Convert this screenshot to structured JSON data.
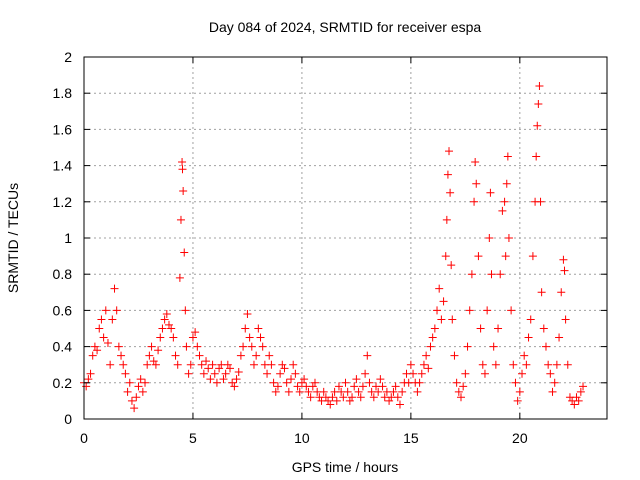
{
  "chart_data": {
    "type": "scatter",
    "title": "Day 084 of 2024, SRMTID for receiver espa",
    "xlabel": "GPS time / hours",
    "ylabel": "SRMTID / TECUs",
    "xlim": [
      0,
      24
    ],
    "ylim": [
      0,
      2
    ],
    "xticks": [
      0,
      5,
      10,
      15,
      20
    ],
    "xtick_labels": [
      "0",
      "5",
      "10",
      "15",
      "20"
    ],
    "yticks": [
      0,
      0.2,
      0.4,
      0.6,
      0.8,
      1,
      1.2,
      1.4,
      1.6,
      1.8,
      2
    ],
    "ytick_labels": [
      "0",
      "0.2",
      "0.4",
      "0.6",
      "0.8",
      "1",
      "1.2",
      "1.4",
      "1.6",
      "1.8",
      "2"
    ],
    "grid": true,
    "marker": "+",
    "series": [
      {
        "name": "SRMTID",
        "color": "#ff0000",
        "points": [
          [
            0.0,
            0.2
          ],
          [
            0.1,
            0.18
          ],
          [
            0.2,
            0.22
          ],
          [
            0.3,
            0.25
          ],
          [
            0.4,
            0.35
          ],
          [
            0.5,
            0.4
          ],
          [
            0.6,
            0.38
          ],
          [
            0.7,
            0.5
          ],
          [
            0.8,
            0.55
          ],
          [
            0.9,
            0.45
          ],
          [
            1.0,
            0.6
          ],
          [
            1.1,
            0.42
          ],
          [
            1.2,
            0.3
          ],
          [
            1.3,
            0.55
          ],
          [
            1.4,
            0.72
          ],
          [
            1.5,
            0.6
          ],
          [
            1.6,
            0.4
          ],
          [
            1.7,
            0.35
          ],
          [
            1.8,
            0.3
          ],
          [
            1.9,
            0.25
          ],
          [
            2.0,
            0.15
          ],
          [
            2.1,
            0.2
          ],
          [
            2.2,
            0.1
          ],
          [
            2.3,
            0.06
          ],
          [
            2.4,
            0.12
          ],
          [
            2.5,
            0.18
          ],
          [
            2.6,
            0.22
          ],
          [
            2.7,
            0.15
          ],
          [
            2.8,
            0.2
          ],
          [
            2.9,
            0.3
          ],
          [
            3.0,
            0.35
          ],
          [
            3.1,
            0.4
          ],
          [
            3.2,
            0.32
          ],
          [
            3.3,
            0.3
          ],
          [
            3.4,
            0.38
          ],
          [
            3.5,
            0.45
          ],
          [
            3.6,
            0.5
          ],
          [
            3.7,
            0.55
          ],
          [
            3.8,
            0.58
          ],
          [
            3.9,
            0.52
          ],
          [
            4.0,
            0.5
          ],
          [
            4.1,
            0.45
          ],
          [
            4.2,
            0.35
          ],
          [
            4.3,
            0.3
          ],
          [
            4.4,
            0.78
          ],
          [
            4.45,
            1.1
          ],
          [
            4.5,
            1.42
          ],
          [
            4.52,
            1.38
          ],
          [
            4.55,
            1.26
          ],
          [
            4.6,
            0.92
          ],
          [
            4.65,
            0.6
          ],
          [
            4.7,
            0.4
          ],
          [
            4.8,
            0.25
          ],
          [
            4.9,
            0.3
          ],
          [
            5.0,
            0.45
          ],
          [
            5.1,
            0.48
          ],
          [
            5.2,
            0.4
          ],
          [
            5.3,
            0.35
          ],
          [
            5.4,
            0.3
          ],
          [
            5.5,
            0.25
          ],
          [
            5.6,
            0.32
          ],
          [
            5.7,
            0.28
          ],
          [
            5.8,
            0.22
          ],
          [
            5.9,
            0.3
          ],
          [
            6.0,
            0.25
          ],
          [
            6.1,
            0.2
          ],
          [
            6.2,
            0.28
          ],
          [
            6.3,
            0.3
          ],
          [
            6.4,
            0.22
          ],
          [
            6.5,
            0.25
          ],
          [
            6.6,
            0.3
          ],
          [
            6.7,
            0.28
          ],
          [
            6.8,
            0.2
          ],
          [
            6.9,
            0.18
          ],
          [
            7.0,
            0.22
          ],
          [
            7.1,
            0.26
          ],
          [
            7.2,
            0.35
          ],
          [
            7.3,
            0.4
          ],
          [
            7.4,
            0.5
          ],
          [
            7.5,
            0.58
          ],
          [
            7.6,
            0.45
          ],
          [
            7.7,
            0.4
          ],
          [
            7.8,
            0.3
          ],
          [
            7.9,
            0.35
          ],
          [
            8.0,
            0.5
          ],
          [
            8.1,
            0.45
          ],
          [
            8.2,
            0.4
          ],
          [
            8.3,
            0.3
          ],
          [
            8.4,
            0.25
          ],
          [
            8.5,
            0.35
          ],
          [
            8.6,
            0.3
          ],
          [
            8.7,
            0.2
          ],
          [
            8.8,
            0.15
          ],
          [
            8.9,
            0.18
          ],
          [
            9.0,
            0.25
          ],
          [
            9.1,
            0.3
          ],
          [
            9.2,
            0.28
          ],
          [
            9.3,
            0.2
          ],
          [
            9.4,
            0.15
          ],
          [
            9.5,
            0.22
          ],
          [
            9.6,
            0.3
          ],
          [
            9.7,
            0.25
          ],
          [
            9.8,
            0.18
          ],
          [
            9.9,
            0.15
          ],
          [
            10.0,
            0.2
          ],
          [
            10.1,
            0.22
          ],
          [
            10.2,
            0.18
          ],
          [
            10.3,
            0.15
          ],
          [
            10.4,
            0.12
          ],
          [
            10.5,
            0.18
          ],
          [
            10.6,
            0.2
          ],
          [
            10.7,
            0.15
          ],
          [
            10.8,
            0.12
          ],
          [
            10.9,
            0.1
          ],
          [
            11.0,
            0.15
          ],
          [
            11.1,
            0.12
          ],
          [
            11.2,
            0.1
          ],
          [
            11.3,
            0.08
          ],
          [
            11.4,
            0.12
          ],
          [
            11.5,
            0.15
          ],
          [
            11.6,
            0.1
          ],
          [
            11.7,
            0.18
          ],
          [
            11.8,
            0.15
          ],
          [
            11.9,
            0.12
          ],
          [
            12.0,
            0.2
          ],
          [
            12.1,
            0.15
          ],
          [
            12.2,
            0.1
          ],
          [
            12.3,
            0.12
          ],
          [
            12.4,
            0.18
          ],
          [
            12.5,
            0.22
          ],
          [
            12.6,
            0.15
          ],
          [
            12.7,
            0.12
          ],
          [
            12.8,
            0.18
          ],
          [
            12.9,
            0.25
          ],
          [
            13.0,
            0.35
          ],
          [
            13.1,
            0.2
          ],
          [
            13.2,
            0.15
          ],
          [
            13.3,
            0.12
          ],
          [
            13.4,
            0.18
          ],
          [
            13.5,
            0.15
          ],
          [
            13.6,
            0.22
          ],
          [
            13.7,
            0.18
          ],
          [
            13.8,
            0.12
          ],
          [
            13.9,
            0.15
          ],
          [
            14.0,
            0.1
          ],
          [
            14.1,
            0.12
          ],
          [
            14.2,
            0.15
          ],
          [
            14.3,
            0.18
          ],
          [
            14.4,
            0.12
          ],
          [
            14.5,
            0.08
          ],
          [
            14.6,
            0.15
          ],
          [
            14.7,
            0.2
          ],
          [
            14.8,
            0.25
          ],
          [
            14.9,
            0.2
          ],
          [
            15.0,
            0.3
          ],
          [
            15.1,
            0.25
          ],
          [
            15.2,
            0.2
          ],
          [
            15.3,
            0.15
          ],
          [
            15.4,
            0.2
          ],
          [
            15.5,
            0.25
          ],
          [
            15.6,
            0.3
          ],
          [
            15.7,
            0.35
          ],
          [
            15.8,
            0.28
          ],
          [
            15.9,
            0.4
          ],
          [
            16.0,
            0.45
          ],
          [
            16.1,
            0.5
          ],
          [
            16.2,
            0.6
          ],
          [
            16.3,
            0.72
          ],
          [
            16.4,
            0.55
          ],
          [
            16.5,
            0.65
          ],
          [
            16.6,
            0.9
          ],
          [
            16.65,
            1.1
          ],
          [
            16.7,
            1.35
          ],
          [
            16.75,
            1.48
          ],
          [
            16.8,
            1.25
          ],
          [
            16.85,
            0.85
          ],
          [
            16.9,
            0.55
          ],
          [
            17.0,
            0.35
          ],
          [
            17.1,
            0.2
          ],
          [
            17.2,
            0.15
          ],
          [
            17.3,
            0.12
          ],
          [
            17.4,
            0.18
          ],
          [
            17.5,
            0.25
          ],
          [
            17.6,
            0.4
          ],
          [
            17.7,
            0.6
          ],
          [
            17.8,
            0.8
          ],
          [
            17.9,
            1.2
          ],
          [
            17.95,
            1.42
          ],
          [
            18.0,
            1.3
          ],
          [
            18.1,
            0.9
          ],
          [
            18.2,
            0.5
          ],
          [
            18.3,
            0.3
          ],
          [
            18.4,
            0.25
          ],
          [
            18.5,
            0.6
          ],
          [
            18.6,
            1.0
          ],
          [
            18.65,
            1.25
          ],
          [
            18.7,
            0.8
          ],
          [
            18.8,
            0.4
          ],
          [
            18.9,
            0.3
          ],
          [
            19.0,
            0.5
          ],
          [
            19.1,
            0.8
          ],
          [
            19.2,
            1.15
          ],
          [
            19.3,
            1.2
          ],
          [
            19.35,
            0.9
          ],
          [
            19.4,
            1.3
          ],
          [
            19.45,
            1.45
          ],
          [
            19.5,
            1.0
          ],
          [
            19.6,
            0.6
          ],
          [
            19.7,
            0.3
          ],
          [
            19.8,
            0.2
          ],
          [
            19.9,
            0.1
          ],
          [
            20.0,
            0.15
          ],
          [
            20.1,
            0.25
          ],
          [
            20.2,
            0.35
          ],
          [
            20.3,
            0.3
          ],
          [
            20.4,
            0.45
          ],
          [
            20.5,
            0.55
          ],
          [
            20.6,
            0.9
          ],
          [
            20.7,
            1.2
          ],
          [
            20.75,
            1.45
          ],
          [
            20.8,
            1.62
          ],
          [
            20.85,
            1.74
          ],
          [
            20.9,
            1.84
          ],
          [
            20.95,
            1.2
          ],
          [
            21.0,
            0.7
          ],
          [
            21.1,
            0.5
          ],
          [
            21.2,
            0.4
          ],
          [
            21.3,
            0.3
          ],
          [
            21.4,
            0.25
          ],
          [
            21.5,
            0.15
          ],
          [
            21.6,
            0.2
          ],
          [
            21.7,
            0.3
          ],
          [
            21.8,
            0.45
          ],
          [
            21.9,
            0.7
          ],
          [
            22.0,
            0.88
          ],
          [
            22.05,
            0.82
          ],
          [
            22.1,
            0.55
          ],
          [
            22.2,
            0.3
          ],
          [
            22.3,
            0.12
          ],
          [
            22.4,
            0.1
          ],
          [
            22.5,
            0.08
          ],
          [
            22.6,
            0.12
          ],
          [
            22.7,
            0.1
          ],
          [
            22.8,
            0.15
          ],
          [
            22.9,
            0.18
          ]
        ]
      }
    ]
  }
}
